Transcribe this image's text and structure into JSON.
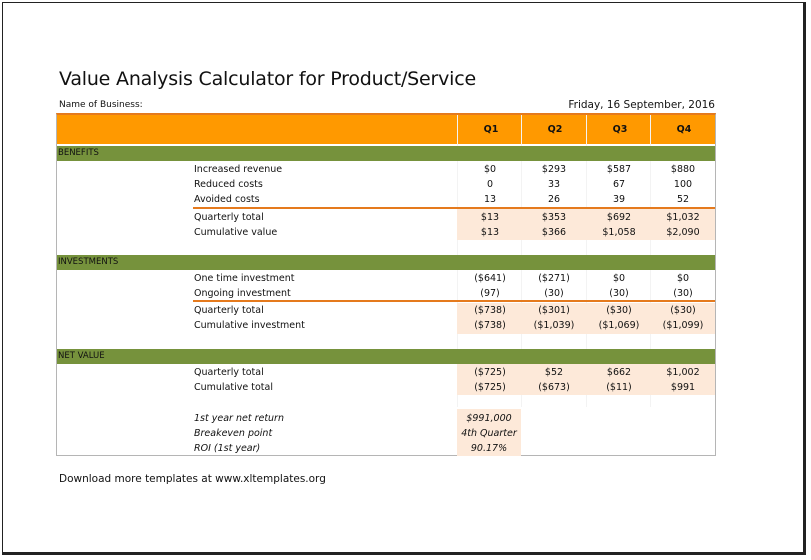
{
  "title": "Value Analysis Calculator for Product/Service",
  "business_label": "Name of Business:",
  "date": "Friday, 16 September, 2016",
  "quarters": [
    "Q1",
    "Q2",
    "Q3",
    "Q4"
  ],
  "benefits": {
    "heading": "BENEFITS",
    "rows": [
      {
        "label": "Increased revenue",
        "values": [
          "$0",
          "$293",
          "$587",
          "$880"
        ]
      },
      {
        "label": "Reduced costs",
        "values": [
          "0",
          "33",
          "67",
          "100"
        ]
      },
      {
        "label": "Avoided costs",
        "values": [
          "13",
          "26",
          "39",
          "52"
        ]
      }
    ],
    "totals": [
      {
        "label": "Quarterly total",
        "values": [
          "$13",
          "$353",
          "$692",
          "$1,032"
        ]
      },
      {
        "label": "Cumulative value",
        "values": [
          "$13",
          "$366",
          "$1,058",
          "$2,090"
        ]
      }
    ]
  },
  "investments": {
    "heading": "INVESTMENTS",
    "rows": [
      {
        "label": "One time investment",
        "values": [
          "($641)",
          "($271)",
          "$0",
          "$0"
        ]
      },
      {
        "label": "Ongoing investment",
        "values": [
          "(97)",
          "(30)",
          "(30)",
          "(30)"
        ]
      }
    ],
    "totals": [
      {
        "label": "Quarterly total",
        "values": [
          "($738)",
          "($301)",
          "($30)",
          "($30)"
        ]
      },
      {
        "label": "Cumulative investment",
        "values": [
          "($738)",
          "($1,039)",
          "($1,069)",
          "($1,099)"
        ]
      }
    ]
  },
  "net_value": {
    "heading": "NET VALUE",
    "totals": [
      {
        "label": "Quarterly total",
        "values": [
          "($725)",
          "$52",
          "$662",
          "$1,002"
        ]
      },
      {
        "label": "Cumulative total",
        "values": [
          "($725)",
          "($673)",
          "($11)",
          "$991"
        ]
      }
    ]
  },
  "summary": [
    {
      "label": "1st year net return",
      "value": "$991,000"
    },
    {
      "label": "Breakeven point",
      "value": "4th Quarter"
    },
    {
      "label": "ROI (1st year)",
      "value": "90.17%"
    }
  ],
  "footer": "Download more templates at www.xltemplates.org",
  "colors": {
    "header": "#ff9900",
    "section": "#76923c",
    "tint": "#fde9d9",
    "rule": "#e57a1d"
  }
}
